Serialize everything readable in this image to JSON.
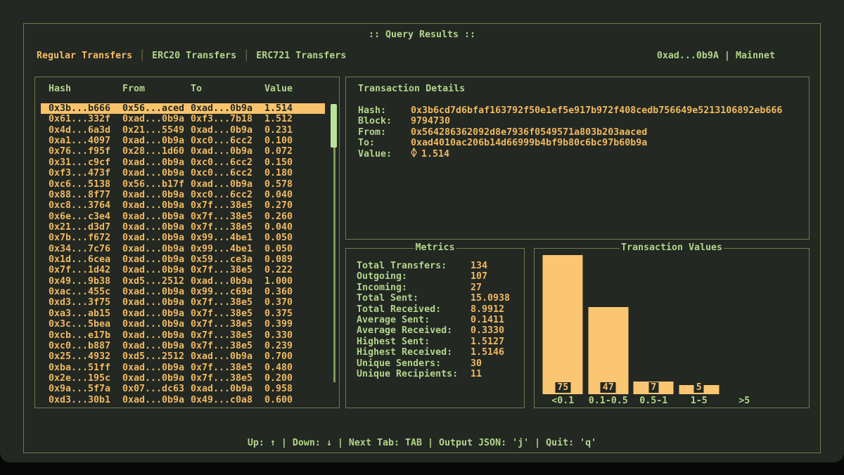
{
  "window": {
    "title": ":: Query Results ::",
    "wallet": "0xad...0b9A",
    "separator": "|",
    "network": "Mainnet"
  },
  "tab_separator": "│",
  "tabs": [
    {
      "label": "Regular Transfers",
      "active": true
    },
    {
      "label": "ERC20 Transfers",
      "active": false
    },
    {
      "label": "ERC721 Transfers",
      "active": false
    }
  ],
  "table": {
    "headers": [
      "Hash",
      "From",
      "To",
      "Value"
    ],
    "selected_index": 0,
    "rows": [
      [
        "0x3b...b666",
        "0x56...aced",
        "0xad...0b9a",
        "1.514"
      ],
      [
        "0x61...332f",
        "0xad...0b9a",
        "0xf3...7b18",
        "1.512"
      ],
      [
        "0x4d...6a3d",
        "0x21...5549",
        "0xad...0b9a",
        "0.231"
      ],
      [
        "0xa1...4097",
        "0xad...0b9a",
        "0xc0...6cc2",
        "0.100"
      ],
      [
        "0x76...f95f",
        "0x28...1d60",
        "0xad...0b9a",
        "0.072"
      ],
      [
        "0x31...c9cf",
        "0xad...0b9a",
        "0xc0...6cc2",
        "0.150"
      ],
      [
        "0xf3...473f",
        "0xad...0b9a",
        "0xc0...6cc2",
        "0.180"
      ],
      [
        "0xc6...5138",
        "0x56...b17f",
        "0xad...0b9a",
        "0.578"
      ],
      [
        "0x88...8f77",
        "0xad...0b9a",
        "0xc0...6cc2",
        "0.040"
      ],
      [
        "0xc8...3764",
        "0xad...0b9a",
        "0x7f...38e5",
        "0.270"
      ],
      [
        "0x6e...c3e4",
        "0xad...0b9a",
        "0x7f...38e5",
        "0.260"
      ],
      [
        "0x21...d3d7",
        "0xad...0b9a",
        "0x7f...38e5",
        "0.040"
      ],
      [
        "0x7b...f672",
        "0xad...0b9a",
        "0x99...4be1",
        "0.050"
      ],
      [
        "0x34...7c76",
        "0xad...0b9a",
        "0x99...4be1",
        "0.050"
      ],
      [
        "0x1d...6cea",
        "0xad...0b9a",
        "0x59...ce3a",
        "0.089"
      ],
      [
        "0x7f...1d42",
        "0xad...0b9a",
        "0x7f...38e5",
        "0.222"
      ],
      [
        "0x49...9b38",
        "0xd5...2512",
        "0xad...0b9a",
        "1.000"
      ],
      [
        "0xac...455c",
        "0xad...0b9a",
        "0x99...c69d",
        "0.360"
      ],
      [
        "0xd3...3f75",
        "0xad...0b9a",
        "0x7f...38e5",
        "0.370"
      ],
      [
        "0xa3...ab15",
        "0xad...0b9a",
        "0x7f...38e5",
        "0.375"
      ],
      [
        "0x3c...5bea",
        "0xad...0b9a",
        "0x7f...38e5",
        "0.399"
      ],
      [
        "0xcb...e17b",
        "0xad...0b9a",
        "0x7f...38e5",
        "0.330"
      ],
      [
        "0xc0...b887",
        "0xad...0b9a",
        "0x7f...38e5",
        "0.239"
      ],
      [
        "0x25...4932",
        "0xd5...2512",
        "0xad...0b9a",
        "0.700"
      ],
      [
        "0xba...51ff",
        "0xad...0b9a",
        "0x7f...38e5",
        "0.480"
      ],
      [
        "0x2e...195c",
        "0xad...0b9a",
        "0x7f...38e5",
        "0.200"
      ],
      [
        "0x9a...5f7a",
        "0x07...dc63",
        "0xad...0b9a",
        "0.958"
      ],
      [
        "0xd3...30b1",
        "0xad...0b9a",
        "0x49...c0a8",
        "0.600"
      ]
    ]
  },
  "details": {
    "title": "Transaction Details",
    "fields": [
      {
        "label": "Hash:",
        "value": "0x3b6cd7d6bfaf163792f50e1ef5e917b972f408cedb756649e5213106892eb666"
      },
      {
        "label": "Block:",
        "value": "9794730"
      },
      {
        "label": "From:",
        "value": "0x564286362092d8e7936f0549571a803b203aaced"
      },
      {
        "label": "To:",
        "value": "0xad4010ac206b14d66999b4bf9b80c6bc97b60b9a"
      },
      {
        "label": "Value:",
        "value": "1.514",
        "icon": "eth-icon"
      }
    ]
  },
  "metrics": {
    "title": "Metrics",
    "items": [
      {
        "label": "Total Transfers:",
        "value": "134"
      },
      {
        "label": "Outgoing:",
        "value": "107"
      },
      {
        "label": "Incoming:",
        "value": "27"
      },
      {
        "label": "Total Sent:",
        "value": "15.0938"
      },
      {
        "label": "Total Received:",
        "value": "8.9912"
      },
      {
        "label": "Average Sent:",
        "value": "0.1411"
      },
      {
        "label": "Average Received:",
        "value": "0.3330"
      },
      {
        "label": "Highest Sent:",
        "value": "1.5127"
      },
      {
        "label": "Highest Received:",
        "value": "1.5146"
      },
      {
        "label": "Unique Senders:",
        "value": "30"
      },
      {
        "label": "Unique Recipients:",
        "value": "11"
      }
    ]
  },
  "chart_data": {
    "type": "bar",
    "title": "Transaction Values",
    "categories": [
      "<0.1",
      "0.1-0.5",
      "0.5-1",
      "1-5",
      ">5"
    ],
    "values": [
      75,
      47,
      7,
      5,
      0
    ],
    "bar_labels": [
      "75",
      "47",
      "7",
      "5",
      ""
    ],
    "xlabel": "",
    "ylabel": "",
    "ylim": [
      0,
      78
    ],
    "grid": false,
    "legend": "none",
    "bar_color": "#fbc672"
  },
  "statusbar": {
    "text": "Up: ↑ | Down: ↓ | Next Tab: TAB | Output JSON: 'j' | Quit: 'q'"
  },
  "colors": {
    "background": "#232823",
    "page_behind": "#070807",
    "border_green": "#6e7b50",
    "text_green": "#b2d58a",
    "text_orange": "#f0b95f",
    "selected_row_bg": "#f9c36b",
    "bar_orange": "#fbc672",
    "scroll_thumb": "#b9e29b",
    "scroll_track": "#7e9a58"
  }
}
